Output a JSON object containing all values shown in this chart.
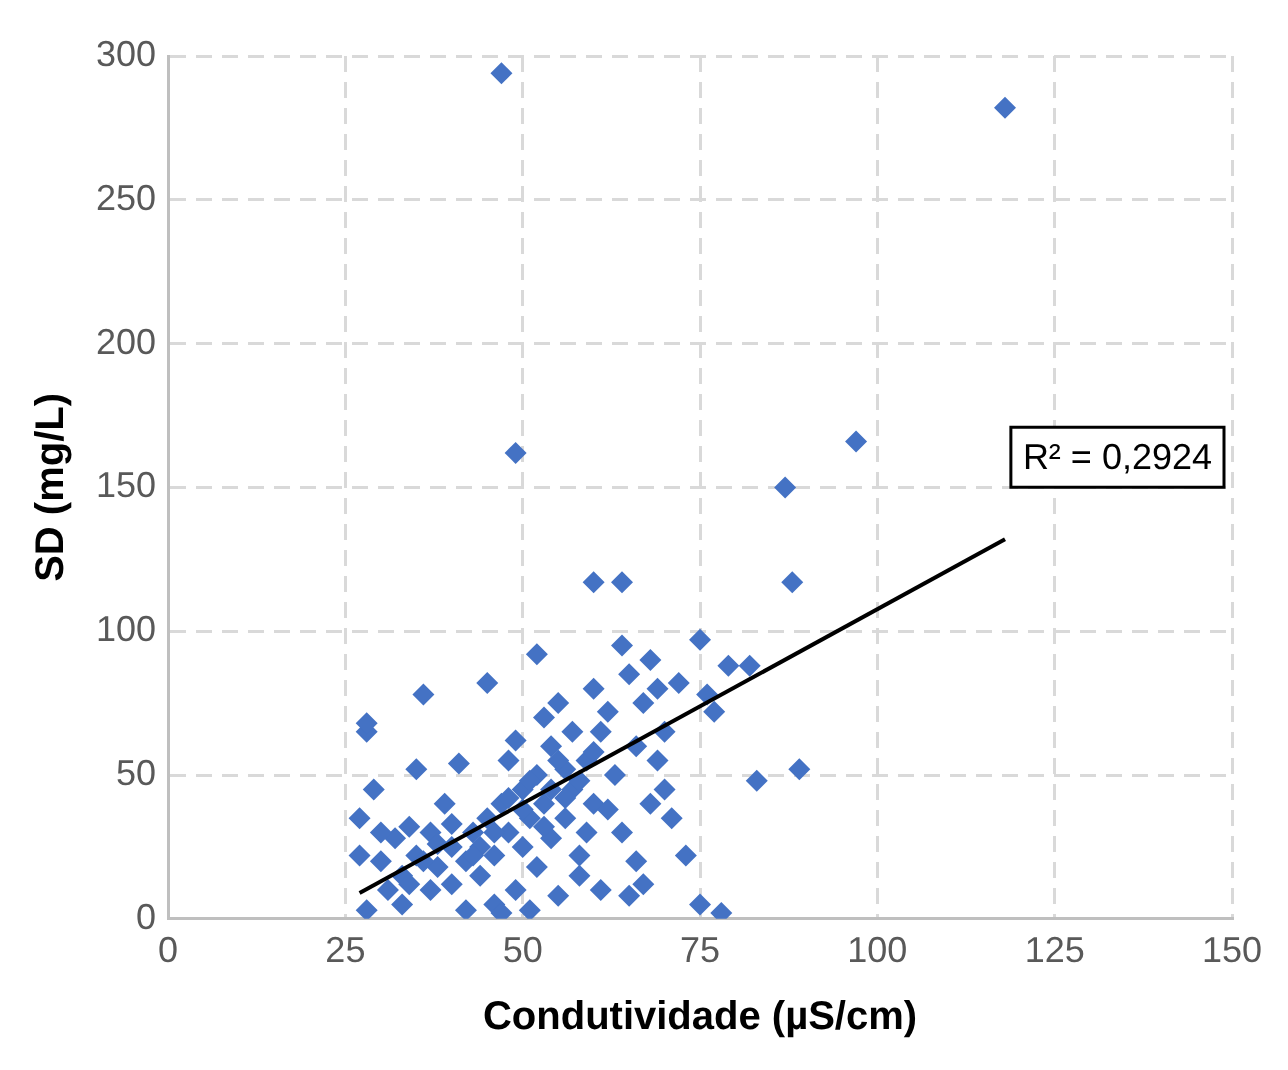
{
  "chart_data": {
    "type": "scatter",
    "xlabel": "Condutividade (µS/cm)",
    "ylabel": "SD (mg/L)",
    "xlim": [
      0,
      150
    ],
    "xticks": [
      0,
      25,
      50,
      75,
      100,
      125,
      150
    ],
    "ylim": [
      0,
      300
    ],
    "yticks": [
      0,
      50,
      100,
      150,
      200,
      250,
      300
    ],
    "grid": true,
    "legend": false,
    "marker": "diamond",
    "annotations": [
      "R² = 0,2924"
    ],
    "series": [
      {
        "color": "#4472c4",
        "x": [
          47,
          118,
          49,
          97,
          87,
          88,
          60,
          64,
          27,
          27,
          28,
          28,
          28,
          29,
          30,
          31,
          32,
          33,
          33,
          34,
          35,
          35,
          36,
          37,
          37,
          38,
          39,
          40,
          40,
          41,
          42,
          42,
          43,
          44,
          45,
          45,
          46,
          46,
          47,
          47,
          48,
          48,
          49,
          49,
          50,
          50,
          51,
          51,
          52,
          52,
          52,
          53,
          53,
          54,
          54,
          55,
          55,
          56,
          56,
          57,
          57,
          58,
          58,
          59,
          60,
          60,
          61,
          61,
          62,
          63,
          64,
          64,
          65,
          65,
          66,
          66,
          67,
          67,
          68,
          68,
          69,
          69,
          70,
          70,
          71,
          72,
          73,
          75,
          75,
          76,
          77,
          78,
          79,
          82,
          83,
          89,
          44,
          46,
          48,
          50,
          51,
          53,
          54,
          55,
          56,
          58,
          59,
          62,
          38,
          40,
          43,
          30,
          34,
          36,
          60
        ],
        "values": [
          294,
          282,
          162,
          166,
          150,
          117,
          117,
          117,
          22,
          35,
          3,
          65,
          68,
          45,
          20,
          10,
          28,
          5,
          15,
          32,
          52,
          22,
          78,
          30,
          10,
          18,
          40,
          25,
          12,
          54,
          20,
          3,
          30,
          15,
          82,
          35,
          22,
          5,
          40,
          2,
          55,
          30,
          62,
          10,
          45,
          25,
          35,
          3,
          92,
          50,
          18,
          70,
          40,
          60,
          28,
          75,
          8,
          52,
          35,
          65,
          45,
          22,
          15,
          55,
          80,
          40,
          65,
          10,
          72,
          50,
          95,
          30,
          85,
          8,
          60,
          20,
          75,
          12,
          90,
          40,
          80,
          55,
          65,
          45,
          35,
          82,
          22,
          97,
          5,
          78,
          72,
          2,
          88,
          88,
          48,
          52,
          25,
          30,
          42,
          38,
          48,
          32,
          45,
          55,
          42,
          48,
          30,
          38,
          26,
          33,
          22,
          30,
          12,
          20,
          58
        ]
      },
      {
        "type": "line",
        "color": "#000000",
        "marker": "none",
        "line_style": "solid",
        "x": [
          27,
          118
        ],
        "values": [
          9,
          132
        ]
      }
    ]
  }
}
